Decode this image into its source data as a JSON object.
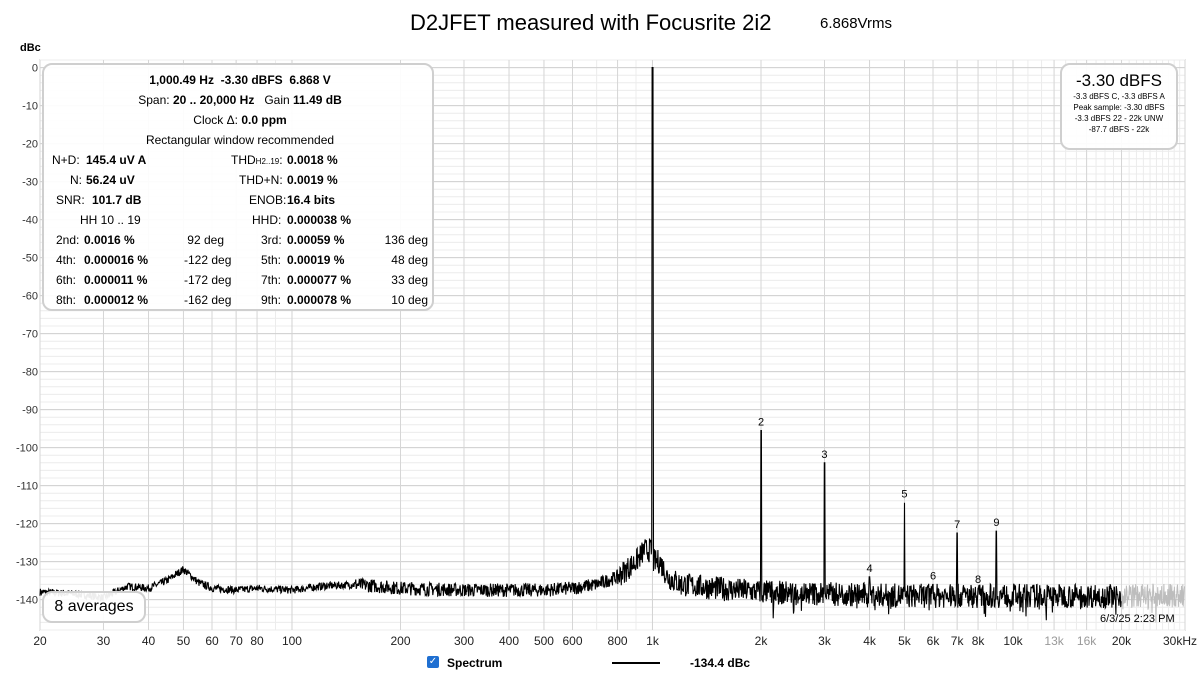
{
  "chart_data": {
    "type": "line",
    "title": "D2JFET measured with Focusrite 2i2",
    "subtitle": "6.868Vrms",
    "ylabel": "dBc",
    "x_scale": "log",
    "xlim": [
      20,
      30000
    ],
    "ylim": [
      -148,
      2
    ],
    "y_ticks": [
      0,
      -10,
      -20,
      -30,
      -40,
      -50,
      -60,
      -70,
      -80,
      -90,
      -100,
      -110,
      -120,
      -130,
      -140
    ],
    "y_tick_labels": [
      "0",
      "-10",
      "-20",
      "-30",
      "-40",
      "-50",
      "-60",
      "-70",
      "-80",
      "-90",
      "-100",
      "-110",
      "-120",
      "-130",
      "-140"
    ],
    "x_ticks": [
      20,
      30,
      40,
      50,
      60,
      70,
      80,
      100,
      200,
      300,
      400,
      500,
      600,
      800,
      1000,
      2000,
      3000,
      4000,
      5000,
      6000,
      7000,
      8000,
      10000,
      13000,
      16000,
      20000,
      30000
    ],
    "x_tick_labels": [
      "20",
      "30",
      "40",
      "50",
      "60",
      "70",
      "80",
      "100",
      "200",
      "300",
      "400",
      "500",
      "600",
      "800",
      "1k",
      "2k",
      "3k",
      "4k",
      "5k",
      "6k",
      "7k",
      "8k",
      "10k",
      "13k",
      "16k",
      "20k",
      "30kHz"
    ],
    "grid": true,
    "noise_floor": [
      [
        20,
        -138
      ],
      [
        25,
        -138.5
      ],
      [
        30,
        -139.5
      ],
      [
        35,
        -136.5
      ],
      [
        40,
        -137
      ],
      [
        45,
        -135
      ],
      [
        50,
        -132
      ],
      [
        55,
        -135.5
      ],
      [
        60,
        -137
      ],
      [
        70,
        -137.5
      ],
      [
        80,
        -137
      ],
      [
        100,
        -137.5
      ],
      [
        120,
        -136.5
      ],
      [
        150,
        -136
      ],
      [
        200,
        -137
      ],
      [
        300,
        -137.5
      ],
      [
        400,
        -137.5
      ],
      [
        500,
        -137.5
      ],
      [
        600,
        -137
      ],
      [
        700,
        -136
      ],
      [
        800,
        -134
      ],
      [
        900,
        -130
      ],
      [
        950,
        -127
      ],
      [
        1000,
        0
      ],
      [
        1050,
        -130
      ],
      [
        1100,
        -134
      ],
      [
        1200,
        -136
      ],
      [
        1500,
        -137
      ],
      [
        2000,
        -138
      ],
      [
        3000,
        -138.5
      ],
      [
        5000,
        -139
      ],
      [
        10000,
        -139
      ],
      [
        20000,
        -139
      ]
    ],
    "harmonic_peaks": [
      {
        "label": "",
        "x": 1000,
        "y": 0
      },
      {
        "label": "2",
        "x": 2000,
        "y": -95.5
      },
      {
        "label": "3",
        "x": 3000,
        "y": -104
      },
      {
        "label": "4",
        "x": 4000,
        "y": -134
      },
      {
        "label": "5",
        "x": 5000,
        "y": -114.5
      },
      {
        "label": "6",
        "x": 6000,
        "y": -136
      },
      {
        "label": "7",
        "x": 7000,
        "y": -122.5
      },
      {
        "label": "8",
        "x": 8000,
        "y": -137
      },
      {
        "label": "9",
        "x": 9000,
        "y": -122
      }
    ],
    "gray_region_start": 20000,
    "series": [
      {
        "name": "Spectrum",
        "color": "#000000"
      }
    ]
  },
  "stats": {
    "line1": {
      "freq": "1,000.49 Hz",
      "level": "-3.30 dBFS",
      "volts": "6.868 V"
    },
    "line2": {
      "span_label": "Span:",
      "span": "20 .. 20,000 Hz",
      "gain_label": "Gain",
      "gain": "11.49 dB"
    },
    "line3": {
      "label": "Clock Δ:",
      "value": "0.0 ppm"
    },
    "line4": "Rectangular window recommended",
    "nd_label": "N+D:",
    "nd_value": "145.4 uV A",
    "thd_label": "THD",
    "thd_sub": "H2..19",
    "thd_colon": ":",
    "thd_value": "0.0018 %",
    "n_label": "N:",
    "n_value": "56.24 uV",
    "thdn_label": "THD+N:",
    "thdn_value": "0.0019 %",
    "snr_label": "SNR:",
    "snr_value": "101.7 dB",
    "enob_label": "ENOB:",
    "enob_value": "16.4 bits",
    "hh_label": "HH 10 .. 19",
    "hhd_label": "HHD:",
    "hhd_value": "0.000038 %",
    "harmonics": [
      {
        "label": "2nd:",
        "value": "0.0016 %",
        "phase": "92 deg"
      },
      {
        "label": "3rd:",
        "value": "0.00059 %",
        "phase": "136 deg"
      },
      {
        "label": "4th:",
        "value": "0.000016 %",
        "phase": "-122 deg"
      },
      {
        "label": "5th:",
        "value": "0.00019 %",
        "phase": "48 deg"
      },
      {
        "label": "6th:",
        "value": "0.000011 %",
        "phase": "-172 deg"
      },
      {
        "label": "7th:",
        "value": "0.000077 %",
        "phase": "33 deg"
      },
      {
        "label": "8th:",
        "value": "0.000012 %",
        "phase": "-162 deg"
      },
      {
        "label": "9th:",
        "value": "0.000078 %",
        "phase": "10 deg"
      }
    ]
  },
  "peak": {
    "main": "-3.30 dBFS",
    "lines": [
      "-3.3 dBFS C, -3.3 dBFS A",
      "Peak sample: -3.30 dBFS",
      "-3.3 dBFS 22 - 22k UNW",
      "-87.7 dBFS - 22k"
    ]
  },
  "averages": "8 averages",
  "timestamp": "6/3/25 2:23 PM",
  "legend": {
    "name": "Spectrum",
    "value": "-134.4 dBc",
    "check": "✓"
  }
}
